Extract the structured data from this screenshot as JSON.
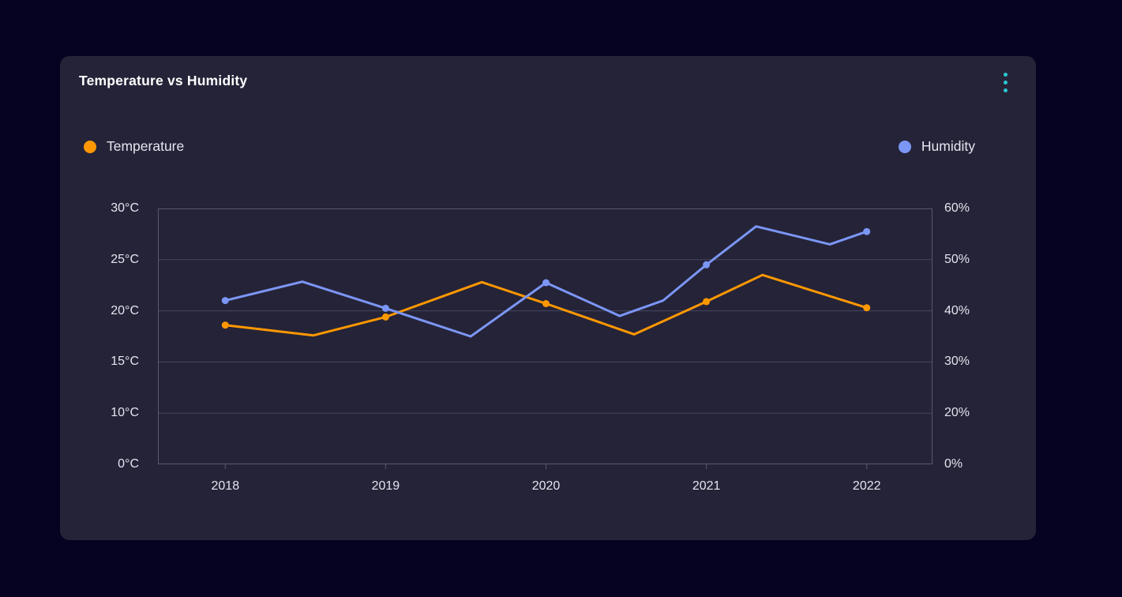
{
  "page": {
    "background": "#050321"
  },
  "card": {
    "title": "Temperature vs Humidity",
    "background": "#252338",
    "menu_icon": "kebab-vertical-dots",
    "menu_icon_color": "#2bc7cf"
  },
  "legend": {
    "temperature": {
      "label": "Temperature",
      "color": "#ff9800"
    },
    "humidity": {
      "label": "Humidity",
      "color": "#7b96f5"
    }
  },
  "chart_data": {
    "type": "line",
    "title": "Temperature vs Humidity",
    "grid": "horizontal-only",
    "legend_position": "top, temperature left / humidity right",
    "colors": {
      "grid": "#45475f",
      "border": "#565871",
      "text": "#e4e4ee"
    },
    "axes": {
      "left": {
        "series": "Temperature",
        "tick_labels": [
          "30°C",
          "25°C",
          "20°C",
          "15°C",
          "10°C",
          "0°C"
        ],
        "tick_values": [
          30,
          25,
          20,
          15,
          10,
          0
        ]
      },
      "right": {
        "series": "Humidity",
        "tick_labels": [
          "60%",
          "50%",
          "40%",
          "30%",
          "20%",
          "0%"
        ],
        "tick_values": [
          60,
          50,
          40,
          30,
          20,
          0
        ]
      },
      "x": {
        "tick_labels": [
          "2018",
          "2019",
          "2020",
          "2021",
          "2022"
        ],
        "tick_values": [
          2018,
          2019,
          2020,
          2021,
          2022
        ],
        "range": [
          2017.58,
          2022.41
        ]
      }
    },
    "series": [
      {
        "name": "Temperature",
        "axis": "left",
        "unit": "°C",
        "color": "#ff9800",
        "points": [
          {
            "x": 2018.0,
            "y": 18.6,
            "marker": true
          },
          {
            "x": 2018.55,
            "y": 17.6,
            "marker": false
          },
          {
            "x": 2019.0,
            "y": 19.4,
            "marker": true
          },
          {
            "x": 2019.6,
            "y": 22.8,
            "marker": false
          },
          {
            "x": 2020.0,
            "y": 20.7,
            "marker": true
          },
          {
            "x": 2020.55,
            "y": 17.7,
            "marker": false
          },
          {
            "x": 2021.0,
            "y": 20.9,
            "marker": true
          },
          {
            "x": 2021.35,
            "y": 23.5,
            "marker": false
          },
          {
            "x": 2022.0,
            "y": 20.3,
            "marker": true
          }
        ]
      },
      {
        "name": "Humidity",
        "axis": "right",
        "unit": "%",
        "color": "#7b96f5",
        "points": [
          {
            "x": 2018.0,
            "y": 42.0,
            "marker": true
          },
          {
            "x": 2018.48,
            "y": 45.7,
            "marker": false
          },
          {
            "x": 2019.0,
            "y": 40.5,
            "marker": true
          },
          {
            "x": 2019.53,
            "y": 35.0,
            "marker": false
          },
          {
            "x": 2020.0,
            "y": 45.5,
            "marker": true
          },
          {
            "x": 2020.46,
            "y": 39.0,
            "marker": false
          },
          {
            "x": 2020.73,
            "y": 42.0,
            "marker": false
          },
          {
            "x": 2021.0,
            "y": 49.0,
            "marker": true
          },
          {
            "x": 2021.31,
            "y": 56.5,
            "marker": false
          },
          {
            "x": 2021.77,
            "y": 53.0,
            "marker": false
          },
          {
            "x": 2022.0,
            "y": 55.5,
            "marker": true
          }
        ]
      }
    ]
  }
}
